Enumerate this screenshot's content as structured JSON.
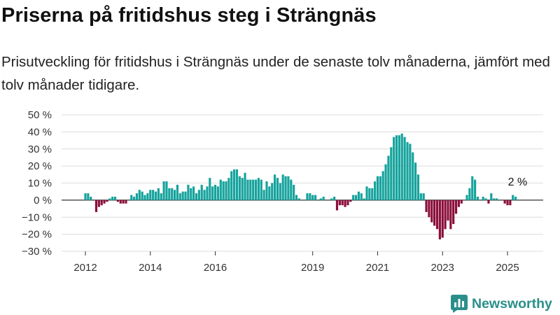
{
  "title": "Priserna på fritidshus steg i Strängnäs",
  "subtitle": "Prisutveckling för fritidshus i Strängnäs under de senaste tolv månaderna, jämfört med tolv månader tidigare.",
  "brand": {
    "name": "Newsworthy",
    "icon": "newsworthy-logo-icon",
    "color": "#2a8f8a"
  },
  "colors": {
    "positive": "#16a39d",
    "negative": "#8b0e3a"
  },
  "chart_data": {
    "type": "bar",
    "xlabel": "",
    "ylabel": "",
    "ylim": [
      -30,
      50
    ],
    "yticks": [
      {
        "value": 50,
        "label": "50 %"
      },
      {
        "value": 40,
        "label": "40 %"
      },
      {
        "value": 30,
        "label": "30 %"
      },
      {
        "value": 20,
        "label": "20 %"
      },
      {
        "value": 10,
        "label": "10 %"
      },
      {
        "value": 0,
        "label": "0 %"
      },
      {
        "value": -10,
        "label": "−10 %"
      },
      {
        "value": -20,
        "label": "−20 %"
      },
      {
        "value": -30,
        "label": "−30 %"
      }
    ],
    "xticks": [
      {
        "date": "2012-01",
        "label": "2012"
      },
      {
        "date": "2014-01",
        "label": "2014"
      },
      {
        "date": "2016-01",
        "label": "2016"
      },
      {
        "date": "2019-01",
        "label": "2019"
      },
      {
        "date": "2021-01",
        "label": "2021"
      },
      {
        "date": "2023-01",
        "label": "2023"
      },
      {
        "date": "2025-01",
        "label": "2025"
      }
    ],
    "grid": true,
    "annotation": {
      "date": "2025-05",
      "text": "2 %"
    },
    "series": [
      {
        "start": "2012-01",
        "frequency": "monthly",
        "values": [
          4,
          4,
          2,
          null,
          -7,
          -4,
          -3,
          -2,
          -1,
          1,
          2,
          2,
          -1,
          -2,
          -2,
          -2,
          null,
          3,
          2,
          4,
          6,
          5,
          3,
          4,
          6,
          6,
          5,
          7,
          4,
          11,
          11,
          7,
          7,
          6,
          9,
          4,
          5,
          5,
          9,
          7,
          8,
          4,
          6,
          9,
          6,
          8,
          13,
          8,
          9,
          8,
          12,
          11,
          11,
          13,
          17,
          18,
          18,
          14,
          13,
          16,
          12,
          12,
          12,
          12,
          13,
          12,
          6,
          11,
          8,
          10,
          15,
          13,
          10,
          15,
          14,
          14,
          12,
          9,
          3,
          1,
          null,
          null,
          4,
          4,
          3,
          3,
          null,
          1,
          2,
          null,
          null,
          1,
          2,
          -6,
          -3,
          -3,
          -4,
          -3,
          -1,
          3,
          3,
          5,
          4,
          1,
          8,
          7,
          7,
          11,
          14,
          14,
          17,
          21,
          26,
          31,
          37,
          38,
          38,
          39,
          37,
          34,
          33,
          28,
          22,
          15,
          4,
          4,
          -7,
          -10,
          -13,
          -15,
          -17,
          -23,
          -22,
          -17,
          -12,
          -17,
          -14,
          -8,
          -4,
          -2,
          0,
          3,
          7,
          14,
          12,
          2,
          null,
          2,
          1,
          -2,
          4,
          1,
          1,
          0,
          0,
          -2,
          -3,
          -3,
          3,
          2
        ]
      }
    ]
  }
}
